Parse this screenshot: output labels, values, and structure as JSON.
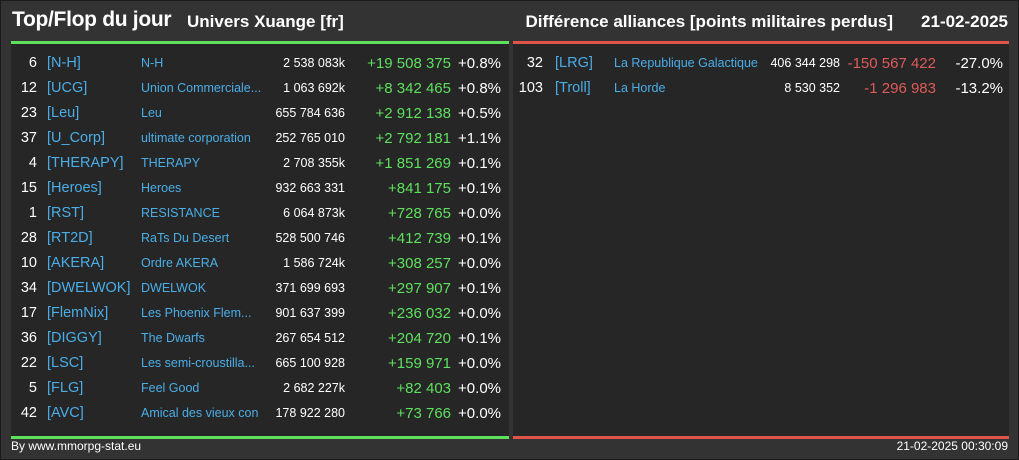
{
  "header": {
    "title": "Top/Flop du jour",
    "subtitle": "Univers Xuange [fr]",
    "heading": "Différence alliances [points militaires perdus]",
    "date": "21-02-2025"
  },
  "colors": {
    "background": "#333333",
    "panel": "#262626",
    "positive": "#5ee05e",
    "negative": "#e05a5a",
    "link": "#4aaee8"
  },
  "top": {
    "rows": [
      {
        "rank": "6",
        "tag": "[N-H]",
        "name": "N-H",
        "points": "2 538 083k",
        "diff": "+19 508 375",
        "pct": "+0.8%"
      },
      {
        "rank": "12",
        "tag": "[UCG]",
        "name": "Union Commerciale...",
        "points": "1 063 692k",
        "diff": "+8 342 465",
        "pct": "+0.8%"
      },
      {
        "rank": "23",
        "tag": "[Leu]",
        "name": "Leu",
        "points": "655 784 636",
        "diff": "+2 912 138",
        "pct": "+0.5%"
      },
      {
        "rank": "37",
        "tag": "[U_Corp]",
        "name": "ultimate corporation",
        "points": "252 765 010",
        "diff": "+2 792 181",
        "pct": "+1.1%"
      },
      {
        "rank": "4",
        "tag": "[THERAPY]",
        "name": "THERAPY",
        "points": "2 708 355k",
        "diff": "+1 851 269",
        "pct": "+0.1%"
      },
      {
        "rank": "15",
        "tag": "[Heroes]",
        "name": "Heroes",
        "points": "932 663 331",
        "diff": "+841 175",
        "pct": "+0.1%"
      },
      {
        "rank": "1",
        "tag": "[RST]",
        "name": "RESISTANCE",
        "points": "6 064 873k",
        "diff": "+728 765",
        "pct": "+0.0%"
      },
      {
        "rank": "28",
        "tag": "[RT2D]",
        "name": "RaTs Du Desert",
        "points": "528 500 746",
        "diff": "+412 739",
        "pct": "+0.1%"
      },
      {
        "rank": "10",
        "tag": "[AKERA]",
        "name": "Ordre AKERA",
        "points": "1 586 724k",
        "diff": "+308 257",
        "pct": "+0.0%"
      },
      {
        "rank": "34",
        "tag": "[DWELWOK]",
        "name": "DWELWOK",
        "points": "371 699 693",
        "diff": "+297 907",
        "pct": "+0.1%"
      },
      {
        "rank": "17",
        "tag": "[FlemNix]",
        "name": "Les Phoenix Flem...",
        "points": "901 637 399",
        "diff": "+236 032",
        "pct": "+0.0%"
      },
      {
        "rank": "36",
        "tag": "[DIGGY]",
        "name": "The Dwarfs",
        "points": "267 654 512",
        "diff": "+204 720",
        "pct": "+0.1%"
      },
      {
        "rank": "22",
        "tag": "[LSC]",
        "name": "Les semi-croustilla...",
        "points": "665 100 928",
        "diff": "+159 971",
        "pct": "+0.0%"
      },
      {
        "rank": "5",
        "tag": "[FLG]",
        "name": "Feel Good",
        "points": "2 682 227k",
        "diff": "+82 403",
        "pct": "+0.0%"
      },
      {
        "rank": "42",
        "tag": "[AVC]",
        "name": "Amical des vieux con",
        "points": "178 922 280",
        "diff": "+73 766",
        "pct": "+0.0%"
      }
    ]
  },
  "flop": {
    "rows": [
      {
        "rank": "32",
        "tag": "[LRG]",
        "name": "La Republique Galactique",
        "points": "406 344 298",
        "diff": "-150 567 422",
        "pct": "-27.0%"
      },
      {
        "rank": "103",
        "tag": "[Troll]",
        "name": "La Horde",
        "points": "8 530 352",
        "diff": "-1 296 983",
        "pct": "-13.2%"
      }
    ]
  },
  "footer": {
    "source": "By www.mmorpg-stat.eu",
    "timestamp": "21-02-2025 00:30:09"
  }
}
